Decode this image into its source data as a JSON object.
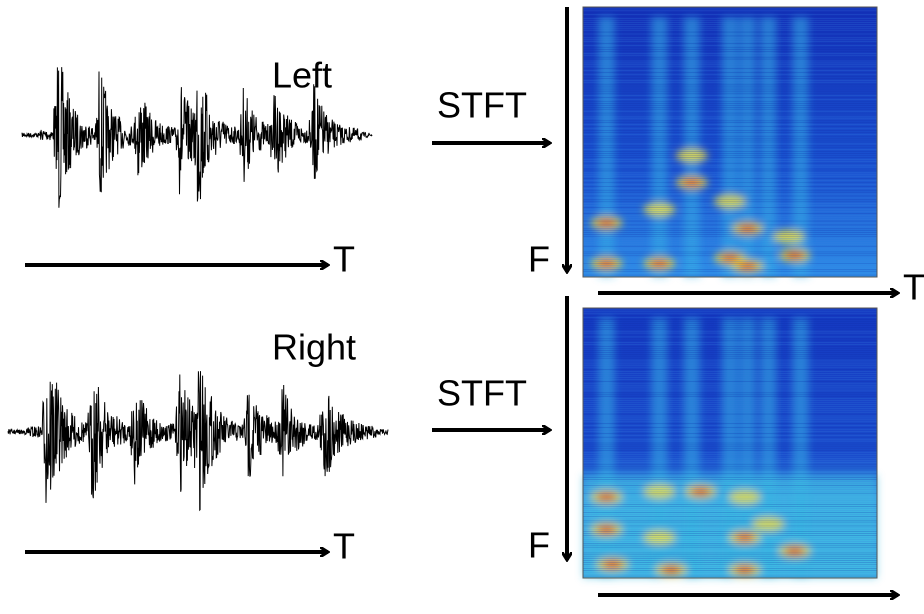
{
  "panels": [
    {
      "label": "Left",
      "transform": "STFT",
      "time_axis": "T",
      "freq_axis": "F",
      "spec_time_axis": "T"
    },
    {
      "label": "Right",
      "transform": "STFT",
      "time_axis": "T",
      "freq_axis": "F"
    }
  ]
}
